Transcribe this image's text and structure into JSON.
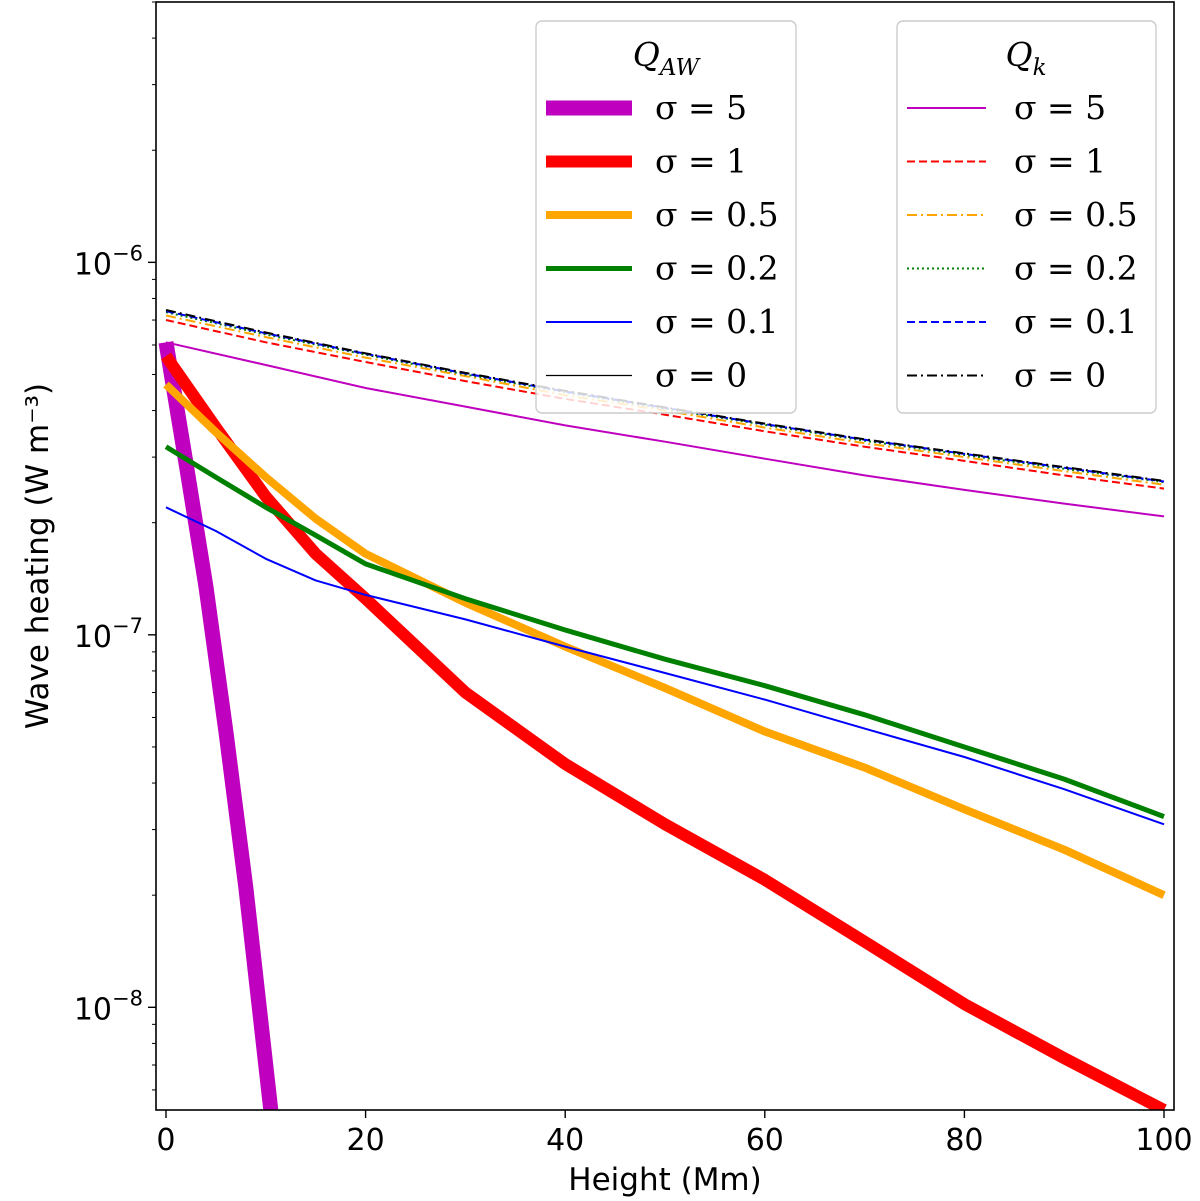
{
  "chart_data": {
    "type": "line",
    "title": "",
    "xlabel": "Height (Mm)",
    "ylabel": "Wave heating (W m⁻³)",
    "xlim": [
      -1,
      101
    ],
    "ylim": [
      5.3e-09,
      5e-06
    ],
    "yscale": "log",
    "x_ticks": [
      0,
      20,
      40,
      60,
      80,
      100
    ],
    "x_tick_labels": [
      "0",
      "20",
      "40",
      "60",
      "80",
      "100"
    ],
    "y_ticks": [
      1e-06,
      1e-07,
      1e-08
    ],
    "y_tick_base": "10",
    "y_tick_exponents": [
      "−6",
      "−7",
      "−8"
    ],
    "legends": [
      {
        "title_main": "Q",
        "title_sub": "AW",
        "entries": [
          "σ = 5",
          "σ = 1",
          "σ = 0.5",
          "σ = 0.2",
          "σ = 0.1",
          "σ = 0"
        ]
      },
      {
        "title_main": "Q",
        "title_sub": "k",
        "entries": [
          "σ = 5",
          "σ = 1",
          "σ = 0.5",
          "σ = 0.2",
          "σ = 0.1",
          "σ = 0"
        ]
      }
    ],
    "series": [
      {
        "name": "Q_AW sigma=5",
        "group": "Q_AW",
        "sigma": 5,
        "color": "#bf00bf",
        "style": "solid",
        "weight": "thick5",
        "x": [
          0,
          2,
          4,
          6,
          8,
          10.5
        ],
        "y": [
          6.1e-07,
          2.9e-07,
          1.35e-07,
          5.5e-08,
          2.1e-08,
          5.3e-09
        ]
      },
      {
        "name": "Q_AW sigma=1",
        "group": "Q_AW",
        "sigma": 1,
        "color": "#ff0000",
        "style": "solid",
        "weight": "thick4",
        "x": [
          0,
          5,
          10,
          15,
          20,
          30,
          40,
          50,
          60,
          70,
          80,
          90,
          100
        ],
        "y": [
          5.6e-07,
          3.6e-07,
          2.35e-07,
          1.65e-07,
          1.25e-07,
          7e-08,
          4.5e-08,
          3.1e-08,
          2.2e-08,
          1.5e-08,
          1.02e-08,
          7.3e-09,
          5.3e-09
        ]
      },
      {
        "name": "Q_AW sigma=0.5",
        "group": "Q_AW",
        "sigma": 0.5,
        "color": "#ffa500",
        "style": "solid",
        "weight": "thick3",
        "x": [
          0,
          5,
          10,
          15,
          20,
          30,
          40,
          50,
          60,
          70,
          80,
          90,
          100
        ],
        "y": [
          4.7e-07,
          3.5e-07,
          2.65e-07,
          2.05e-07,
          1.65e-07,
          1.22e-07,
          9.3e-08,
          7.2e-08,
          5.5e-08,
          4.4e-08,
          3.4e-08,
          2.65e-08,
          2e-08
        ]
      },
      {
        "name": "Q_AW sigma=0.2",
        "group": "Q_AW",
        "sigma": 0.2,
        "color": "#008000",
        "style": "solid",
        "weight": "thick2",
        "x": [
          0,
          5,
          10,
          15,
          20,
          30,
          40,
          50,
          60,
          70,
          80,
          90,
          100
        ],
        "y": [
          3.2e-07,
          2.65e-07,
          2.2e-07,
          1.85e-07,
          1.55e-07,
          1.25e-07,
          1.03e-07,
          8.6e-08,
          7.3e-08,
          6.1e-08,
          5e-08,
          4.1e-08,
          3.25e-08
        ]
      },
      {
        "name": "Q_AW sigma=0.1",
        "group": "Q_AW",
        "sigma": 0.1,
        "color": "#0000ff",
        "style": "solid",
        "weight": "thin",
        "x": [
          0,
          5,
          10,
          15,
          20,
          30,
          40,
          50,
          60,
          70,
          80,
          90,
          100
        ],
        "y": [
          2.2e-07,
          1.9e-07,
          1.6e-07,
          1.4e-07,
          1.28e-07,
          1.1e-07,
          9.3e-08,
          7.9e-08,
          6.7e-08,
          5.6e-08,
          4.7e-08,
          3.85e-08,
          3.1e-08
        ]
      },
      {
        "name": "Q_k sigma=5",
        "group": "Q_k",
        "sigma": 5,
        "color": "#bf00bf",
        "style": "solid",
        "weight": "thin",
        "x": [
          0,
          10,
          20,
          30,
          40,
          50,
          60,
          70,
          80,
          90,
          100
        ],
        "y": [
          6.1e-07,
          5.3e-07,
          4.6e-07,
          4.1e-07,
          3.65e-07,
          3.3e-07,
          2.97e-07,
          2.68e-07,
          2.45e-07,
          2.25e-07,
          2.08e-07
        ]
      },
      {
        "name": "Q_k sigma=1",
        "group": "Q_k",
        "sigma": 1,
        "color": "#ff0000",
        "style": "dashed",
        "weight": "thin",
        "x": [
          0,
          10,
          20,
          30,
          40,
          50,
          60,
          70,
          80,
          90,
          100
        ],
        "y": [
          7e-07,
          6.1e-07,
          5.4e-07,
          4.8e-07,
          4.3e-07,
          3.9e-07,
          3.52e-07,
          3.2e-07,
          2.93e-07,
          2.68e-07,
          2.47e-07
        ]
      },
      {
        "name": "Q_k sigma=0.5",
        "group": "Q_k",
        "sigma": 0.5,
        "color": "#ffa500",
        "style": "dashdot",
        "weight": "thin",
        "x": [
          0,
          10,
          20,
          30,
          40,
          50,
          60,
          70,
          80,
          90,
          100
        ],
        "y": [
          7.2e-07,
          6.3e-07,
          5.55e-07,
          4.95e-07,
          4.4e-07,
          4e-07,
          3.6e-07,
          3.27e-07,
          3e-07,
          2.75e-07,
          2.53e-07
        ]
      },
      {
        "name": "Q_k sigma=0.2",
        "group": "Q_k",
        "sigma": 0.2,
        "color": "#008000",
        "style": "dotted",
        "weight": "thin",
        "x": [
          0,
          10,
          20,
          30,
          40,
          50,
          60,
          70,
          80,
          90,
          100
        ],
        "y": [
          7.35e-07,
          6.4e-07,
          5.65e-07,
          5e-07,
          4.48e-07,
          4.05e-07,
          3.66e-07,
          3.32e-07,
          3.04e-07,
          2.79e-07,
          2.57e-07
        ]
      },
      {
        "name": "Q_k sigma=0.1",
        "group": "Q_k",
        "sigma": 0.1,
        "color": "#0000ff",
        "style": "dashed",
        "weight": "thin",
        "x": [
          0,
          10,
          20,
          30,
          40,
          50,
          60,
          70,
          80,
          90,
          100
        ],
        "y": [
          7.4e-07,
          6.45e-07,
          5.68e-07,
          5.03e-07,
          4.5e-07,
          4.07e-07,
          3.68e-07,
          3.34e-07,
          3.06e-07,
          2.81e-07,
          2.58e-07
        ]
      },
      {
        "name": "Q_k sigma=0",
        "group": "Q_k",
        "sigma": 0,
        "color": "#000000",
        "style": "dashdot",
        "weight": "thin",
        "x": [
          0,
          10,
          20,
          30,
          40,
          50,
          60,
          70,
          80,
          90,
          100
        ],
        "y": [
          7.45e-07,
          6.48e-07,
          5.7e-07,
          5.05e-07,
          4.52e-07,
          4.08e-07,
          3.69e-07,
          3.35e-07,
          3.07e-07,
          2.82e-07,
          2.59e-07
        ]
      }
    ],
    "legend_placement": "top-right, two boxes side by side"
  }
}
